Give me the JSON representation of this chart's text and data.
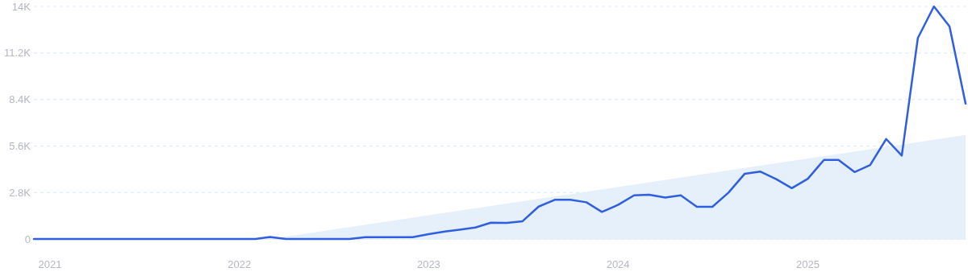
{
  "chart_data": {
    "type": "line",
    "x": [
      "2020-12",
      "2021-01",
      "2021-02",
      "2021-03",
      "2021-04",
      "2021-05",
      "2021-06",
      "2021-07",
      "2021-08",
      "2021-09",
      "2021-10",
      "2021-11",
      "2021-12",
      "2022-01",
      "2022-02",
      "2022-03",
      "2022-04",
      "2022-05",
      "2022-06",
      "2022-07",
      "2022-08",
      "2022-09",
      "2022-10",
      "2022-11",
      "2022-12",
      "2023-01",
      "2023-02",
      "2023-03",
      "2023-04",
      "2023-05",
      "2023-06",
      "2023-07",
      "2023-08",
      "2023-09",
      "2023-10",
      "2023-11",
      "2023-12",
      "2024-01",
      "2024-02",
      "2024-03",
      "2024-04",
      "2024-05",
      "2024-06",
      "2024-07",
      "2024-08",
      "2024-09",
      "2024-10",
      "2024-11",
      "2024-12",
      "2025-01",
      "2025-02",
      "2025-03",
      "2025-04",
      "2025-05",
      "2025-06",
      "2025-07",
      "2025-08",
      "2025-09",
      "2025-10",
      "2025-11"
    ],
    "series": [
      {
        "type": "area",
        "color": "#e6f0fb",
        "x": [
          "2022-03",
          "2025-11"
        ],
        "values": [
          0,
          6260
        ]
      },
      {
        "color": "#2f5fe0",
        "values": [
          0,
          0,
          0,
          0,
          0,
          0,
          0,
          0,
          0,
          0,
          0,
          0,
          0,
          0,
          0,
          120,
          0,
          0,
          0,
          0,
          0,
          110,
          110,
          110,
          110,
          290,
          450,
          560,
          690,
          980,
          970,
          1070,
          1950,
          2360,
          2360,
          2210,
          1630,
          2050,
          2630,
          2660,
          2500,
          2630,
          1940,
          1940,
          2790,
          3920,
          4060,
          3600,
          3060,
          3630,
          4760,
          4760,
          4030,
          4450,
          6020,
          5020,
          12100,
          14000,
          12800,
          8150
        ]
      }
    ],
    "xlim": [
      "2020-12",
      "2025-11"
    ],
    "xticks": [
      {
        "value": "2021",
        "label": "2021"
      },
      {
        "value": "2022",
        "label": "2022"
      },
      {
        "value": "2023",
        "label": "2023"
      },
      {
        "value": "2024",
        "label": "2024"
      },
      {
        "value": "2025",
        "label": "2025"
      }
    ],
    "ylim": [
      0,
      14000
    ],
    "yticks": [
      0,
      {
        "value": 2800,
        "label": "2.8K"
      },
      {
        "value": 5600,
        "label": "5.6K"
      },
      {
        "value": 8400,
        "label": "8.4K"
      },
      {
        "value": 11200,
        "label": "11.2K"
      },
      {
        "value": 14000,
        "label": "14K"
      }
    ],
    "grid": "y"
  }
}
